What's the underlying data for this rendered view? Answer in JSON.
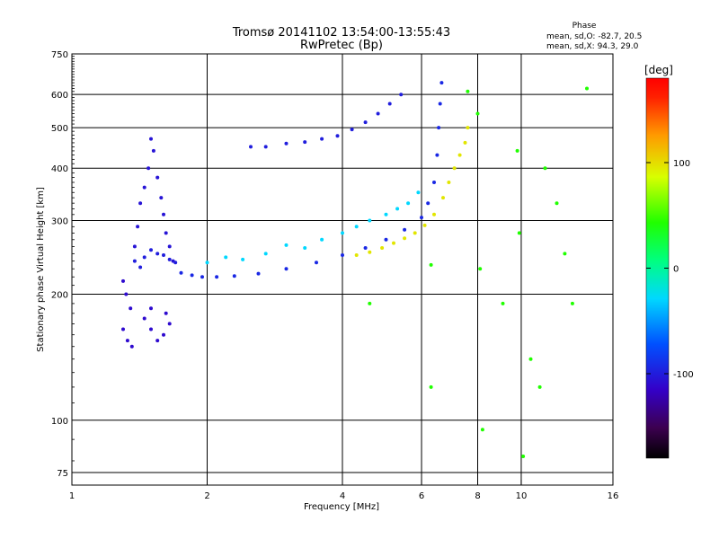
{
  "chart_data": {
    "type": "scatter",
    "title": "Tromsø 20141102 13:54:00-13:55:43",
    "subtitle": "RwPretec (Bp)",
    "xlabel": "Frequency [MHz]",
    "ylabel": "Stationary phase Virtual Height [km]",
    "x_scale": "log",
    "y_scale": "log",
    "xlim": [
      1,
      16
    ],
    "ylim": [
      70,
      750
    ],
    "x_ticks": [
      1,
      2,
      4,
      6,
      8,
      10,
      16
    ],
    "x_tick_labels": [
      "1",
      "2",
      "4",
      "6",
      "8",
      "10",
      "16"
    ],
    "y_ticks": [
      75,
      100,
      200,
      300,
      400,
      500,
      600,
      750
    ],
    "y_tick_labels": [
      "75",
      "100",
      "200",
      "300",
      "400",
      "500",
      "600",
      "750"
    ],
    "grid": true,
    "stats_header": "Phase",
    "stats_lines": [
      "mean, sd,O: -82.7, 20.5",
      "mean, sd,X:  94.3, 29.0"
    ],
    "colorbar": {
      "label": "[deg]",
      "range": [
        -180,
        180
      ],
      "ticks": [
        100,
        0,
        -100
      ],
      "tick_labels": [
        "100",
        "0",
        "-100"
      ],
      "colormap": "rainbow"
    },
    "series": [
      {
        "trace": "low-frequency spike",
        "x": [
          1.38,
          1.4,
          1.42,
          1.45,
          1.48,
          1.5,
          1.52,
          1.55,
          1.58,
          1.6,
          1.62,
          1.65,
          1.68
        ],
        "y": [
          260,
          290,
          330,
          360,
          400,
          470,
          440,
          380,
          340,
          310,
          280,
          260,
          240
        ],
        "phase": -105
      },
      {
        "trace": "spike base",
        "x": [
          1.38,
          1.42,
          1.45,
          1.5,
          1.55,
          1.6,
          1.65,
          1.7
        ],
        "y": [
          240,
          232,
          245,
          255,
          250,
          248,
          242,
          238
        ],
        "phase": -100
      },
      {
        "trace": "lower fragment",
        "x": [
          1.3,
          1.32,
          1.35,
          1.3,
          1.33,
          1.36,
          1.45,
          1.5,
          1.55,
          1.6,
          1.65,
          1.5,
          1.62
        ],
        "y": [
          215,
          200,
          185,
          165,
          155,
          150,
          175,
          165,
          155,
          160,
          170,
          185,
          180
        ],
        "phase": -110
      },
      {
        "trace": "O-mode F-trace",
        "x": [
          1.75,
          1.85,
          1.95,
          2.1,
          2.3,
          2.6,
          3.0,
          3.5,
          4.0,
          4.5,
          5.0,
          5.5,
          6.0,
          6.2,
          6.4,
          6.5,
          6.55,
          6.6,
          6.65
        ],
        "y": [
          225,
          222,
          220,
          220,
          221,
          224,
          230,
          238,
          248,
          258,
          270,
          285,
          305,
          330,
          370,
          430,
          500,
          570,
          640
        ],
        "phase": -95
      },
      {
        "trace": "O-mode upper branch",
        "x": [
          2.5,
          2.7,
          3.0,
          3.3,
          3.6,
          3.9,
          4.2,
          4.5,
          4.8,
          5.1,
          5.4
        ],
        "y": [
          450,
          450,
          458,
          462,
          470,
          478,
          495,
          515,
          540,
          570,
          600
        ],
        "phase": -100
      },
      {
        "trace": "diffuse echoes",
        "x": [
          2.0,
          2.2,
          2.4,
          2.7,
          3.0,
          3.3,
          3.6,
          4.0,
          4.3,
          4.6,
          5.0,
          5.3,
          5.6,
          5.9
        ],
        "y": [
          238,
          245,
          242,
          250,
          262,
          258,
          270,
          280,
          290,
          300,
          310,
          320,
          330,
          350
        ],
        "phase": -30
      },
      {
        "trace": "X-mode F-trace",
        "x": [
          4.3,
          4.6,
          4.9,
          5.2,
          5.5,
          5.8,
          6.1,
          6.4,
          6.7,
          6.9,
          7.1,
          7.3,
          7.5,
          7.6
        ],
        "y": [
          248,
          252,
          258,
          265,
          272,
          280,
          292,
          310,
          340,
          370,
          400,
          430,
          460,
          500
        ],
        "phase": 95
      },
      {
        "trace": "scattered high-frequency echoes",
        "x": [
          7.6,
          8.0,
          8.1,
          8.2,
          9.1,
          9.8,
          9.9,
          10.1,
          10.5,
          11.0,
          11.3,
          12.0,
          12.5,
          13.0,
          14.0,
          6.3,
          6.3,
          4.6
        ],
        "y": [
          610,
          540,
          230,
          95,
          190,
          440,
          280,
          82,
          140,
          120,
          400,
          330,
          250,
          190,
          620,
          235,
          120,
          190
        ],
        "phase": 40
      }
    ]
  }
}
